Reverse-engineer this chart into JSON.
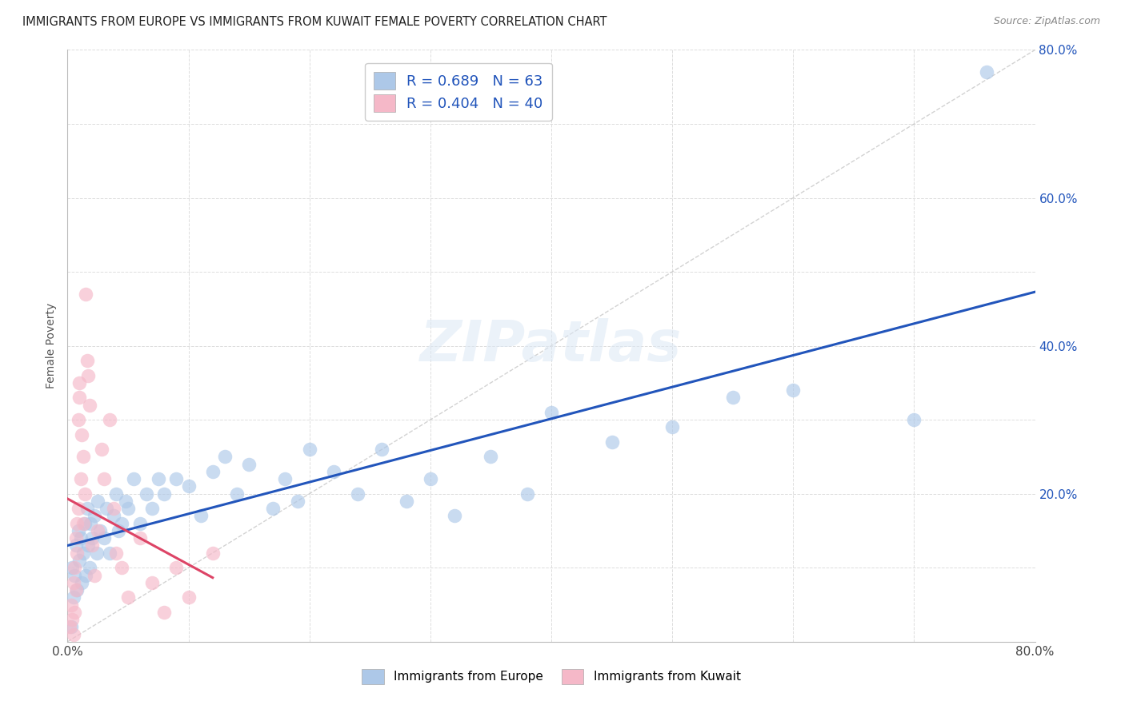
{
  "title": "IMMIGRANTS FROM EUROPE VS IMMIGRANTS FROM KUWAIT FEMALE POVERTY CORRELATION CHART",
  "source": "Source: ZipAtlas.com",
  "ylabel": "Female Poverty",
  "xlim": [
    0,
    0.8
  ],
  "ylim": [
    0,
    0.8
  ],
  "europe_R": 0.689,
  "europe_N": 63,
  "kuwait_R": 0.404,
  "kuwait_N": 40,
  "europe_color": "#adc8e8",
  "kuwait_color": "#f5b8c8",
  "europe_line_color": "#2255bb",
  "kuwait_line_color": "#dd4466",
  "diagonal_color": "#cccccc",
  "legend_label_europe": "Immigrants from Europe",
  "legend_label_kuwait": "Immigrants from Kuwait",
  "europe_x": [
    0.003,
    0.004,
    0.005,
    0.006,
    0.007,
    0.008,
    0.009,
    0.01,
    0.011,
    0.012,
    0.013,
    0.014,
    0.015,
    0.016,
    0.017,
    0.018,
    0.019,
    0.02,
    0.022,
    0.024,
    0.025,
    0.027,
    0.03,
    0.032,
    0.035,
    0.038,
    0.04,
    0.042,
    0.045,
    0.048,
    0.05,
    0.055,
    0.06,
    0.065,
    0.07,
    0.075,
    0.08,
    0.09,
    0.1,
    0.11,
    0.12,
    0.13,
    0.14,
    0.15,
    0.17,
    0.18,
    0.19,
    0.2,
    0.22,
    0.24,
    0.26,
    0.28,
    0.3,
    0.32,
    0.35,
    0.38,
    0.4,
    0.45,
    0.5,
    0.55,
    0.6,
    0.7,
    0.76
  ],
  "europe_y": [
    0.02,
    0.1,
    0.06,
    0.09,
    0.13,
    0.07,
    0.15,
    0.11,
    0.14,
    0.08,
    0.12,
    0.16,
    0.09,
    0.18,
    0.13,
    0.1,
    0.16,
    0.14,
    0.17,
    0.12,
    0.19,
    0.15,
    0.14,
    0.18,
    0.12,
    0.17,
    0.2,
    0.15,
    0.16,
    0.19,
    0.18,
    0.22,
    0.16,
    0.2,
    0.18,
    0.22,
    0.2,
    0.22,
    0.21,
    0.17,
    0.23,
    0.25,
    0.2,
    0.24,
    0.18,
    0.22,
    0.19,
    0.26,
    0.23,
    0.2,
    0.26,
    0.19,
    0.22,
    0.17,
    0.25,
    0.2,
    0.31,
    0.27,
    0.29,
    0.33,
    0.34,
    0.3,
    0.77
  ],
  "kuwait_x": [
    0.002,
    0.003,
    0.004,
    0.005,
    0.005,
    0.006,
    0.006,
    0.007,
    0.007,
    0.008,
    0.008,
    0.009,
    0.009,
    0.01,
    0.01,
    0.011,
    0.012,
    0.013,
    0.013,
    0.014,
    0.015,
    0.016,
    0.017,
    0.018,
    0.02,
    0.022,
    0.025,
    0.028,
    0.03,
    0.035,
    0.038,
    0.04,
    0.045,
    0.05,
    0.06,
    0.07,
    0.08,
    0.09,
    0.1,
    0.12
  ],
  "kuwait_y": [
    0.02,
    0.05,
    0.03,
    0.08,
    0.01,
    0.1,
    0.04,
    0.14,
    0.07,
    0.16,
    0.12,
    0.18,
    0.3,
    0.33,
    0.35,
    0.22,
    0.28,
    0.25,
    0.16,
    0.2,
    0.47,
    0.38,
    0.36,
    0.32,
    0.13,
    0.09,
    0.15,
    0.26,
    0.22,
    0.3,
    0.18,
    0.12,
    0.1,
    0.06,
    0.14,
    0.08,
    0.04,
    0.1,
    0.06,
    0.12
  ]
}
